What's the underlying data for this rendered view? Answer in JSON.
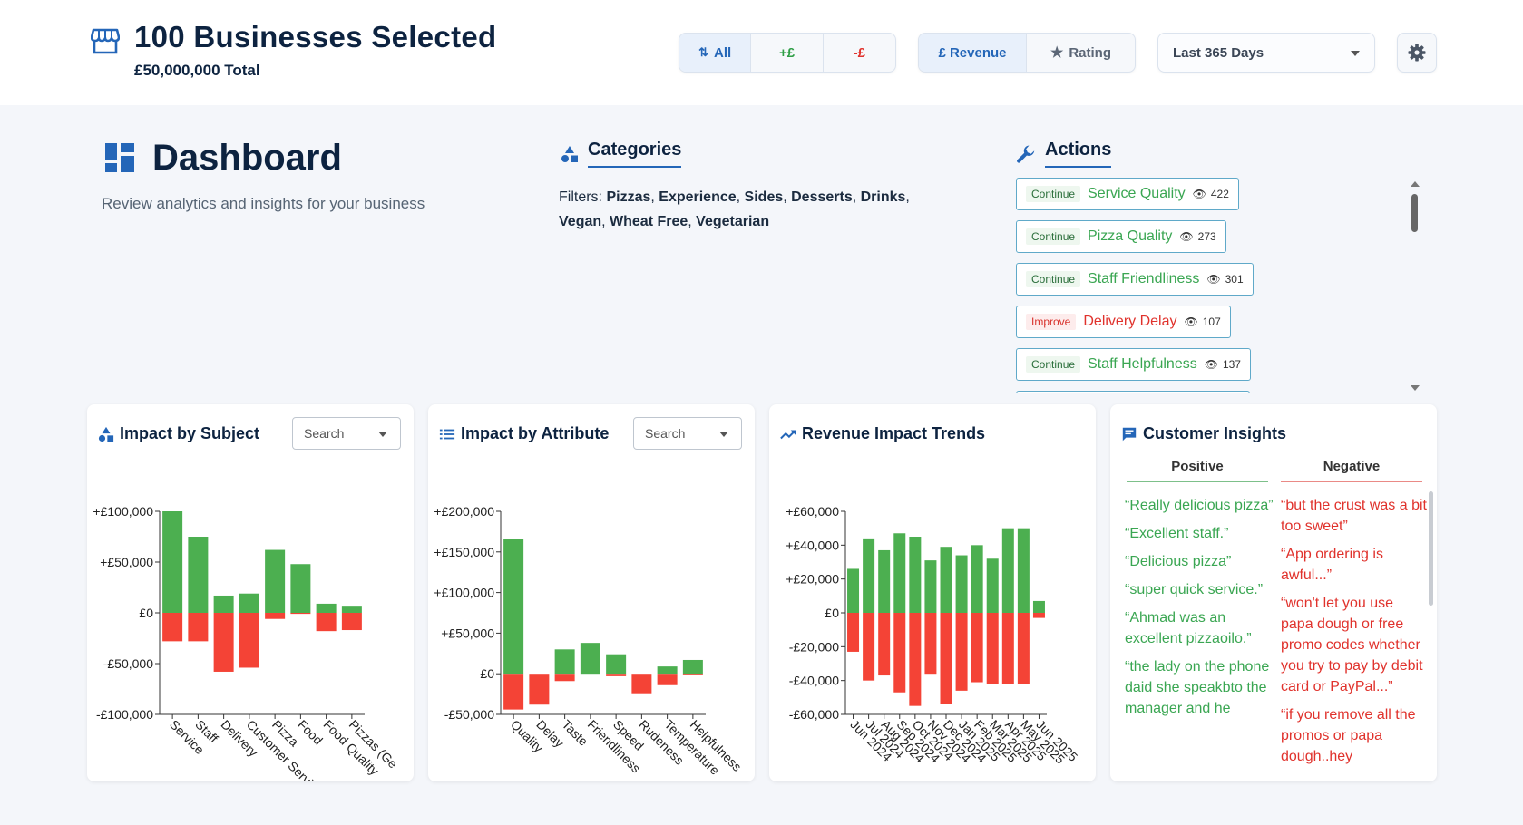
{
  "header": {
    "title": "100 Businesses Selected",
    "total": "£50,000,000 Total",
    "filter_tabs": [
      {
        "label": "All",
        "icon": "sort-arrows-icon",
        "active": true
      },
      {
        "label": "+£",
        "active": false
      },
      {
        "label": "-£",
        "active": false
      }
    ],
    "metric_tabs": [
      {
        "label": "£ Revenue",
        "active": true
      },
      {
        "label": "Rating",
        "icon": "star-icon",
        "active": false
      }
    ],
    "period": "Last 365 Days"
  },
  "dashboard": {
    "title": "Dashboard",
    "subtitle": "Review analytics and insights for your business"
  },
  "categories": {
    "title": "Categories",
    "filters_label": "Filters:",
    "filters": [
      "Pizzas",
      "Experience",
      "Sides",
      "Desserts",
      "Drinks",
      "Vegan",
      "Wheat Free",
      "Vegetarian"
    ]
  },
  "actions": {
    "title": "Actions",
    "items": [
      {
        "tag": "Continue",
        "name": "Service Quality",
        "views": "422",
        "type": "positive"
      },
      {
        "tag": "Continue",
        "name": "Pizza Quality",
        "views": "273",
        "type": "positive"
      },
      {
        "tag": "Continue",
        "name": "Staff Friendliness",
        "views": "301",
        "type": "positive"
      },
      {
        "tag": "Improve",
        "name": "Delivery Delay",
        "views": "107",
        "type": "negative"
      },
      {
        "tag": "Continue",
        "name": "Staff Helpfulness",
        "views": "137",
        "type": "positive"
      }
    ]
  },
  "cards": {
    "subject": {
      "title": "Impact by Subject",
      "search": "Search"
    },
    "attribute": {
      "title": "Impact by Attribute",
      "search": "Search"
    },
    "trends": {
      "title": "Revenue Impact Trends"
    },
    "insights": {
      "title": "Customer Insights",
      "positive_label": "Positive",
      "negative_label": "Negative",
      "positive": [
        "“Really delicious pizza”",
        "“Excellent staff.”",
        "“Delicious pizza”",
        "“super quick service.”",
        "“Ahmad was an excellent pizzaoilo.”",
        "“the lady on the phone daid she speakbto the manager and he"
      ],
      "negative": [
        "“but the crust was a bit too sweet”",
        "“App ordering is awful...”",
        "“won't let you use papa dough or free promo codes whether you try to pay by debit card or PayPal...”",
        "“if you remove all the promos or papa dough..hey"
      ]
    }
  },
  "colors": {
    "positive": "#4caf50",
    "negative": "#f44336",
    "accent": "#2466b8"
  },
  "chart_data": [
    {
      "type": "bar",
      "title": "Impact by Subject",
      "categories": [
        "Service",
        "Staff",
        "Delivery",
        "Customer Service",
        "Pizza",
        "Food",
        "Food Quality",
        "Pizzas (Ge"
      ],
      "series": [
        {
          "name": "positive",
          "values": [
            100000,
            75000,
            17000,
            19000,
            62000,
            48000,
            9000,
            7000
          ]
        },
        {
          "name": "negative",
          "values": [
            -28000,
            -28000,
            -58000,
            -54000,
            -6000,
            -1000,
            -18000,
            -17000
          ]
        }
      ],
      "ylim": [
        -100000,
        100000
      ],
      "ticks": [
        "+£100,000",
        "+£50,000",
        "£0",
        "-£50,000",
        "-£100,000"
      ],
      "tick_values": [
        100000,
        50000,
        0,
        -50000,
        -100000
      ]
    },
    {
      "type": "bar",
      "title": "Impact by Attribute",
      "categories": [
        "Quality",
        "Delay",
        "Taste",
        "Friendliness",
        "Speed",
        "Rudeness",
        "Temperature",
        "Helpfulness"
      ],
      "series": [
        {
          "name": "positive",
          "values": [
            166000,
            0,
            30000,
            38000,
            24000,
            0,
            9000,
            17000
          ]
        },
        {
          "name": "negative",
          "values": [
            -44000,
            -38000,
            -9000,
            0,
            -3000,
            -24000,
            -14000,
            -2000
          ]
        }
      ],
      "ylim": [
        -50000,
        200000
      ],
      "ticks": [
        "+£200,000",
        "+£150,000",
        "+£100,000",
        "+£50,000",
        "£0",
        "-£50,000"
      ],
      "tick_values": [
        200000,
        150000,
        100000,
        50000,
        0,
        -50000
      ]
    },
    {
      "type": "bar",
      "title": "Revenue Impact Trends",
      "categories": [
        "Jun 2024",
        "Jul 2024",
        "Aug 2024",
        "Sep 2024",
        "Oct 2024",
        "Nov 2024",
        "Dec 2024",
        "Jan 2025",
        "Feb 2025",
        "Mar 2025",
        "Apr 2025",
        "May 2025",
        "Jun 2025"
      ],
      "series": [
        {
          "name": "positive",
          "values": [
            26000,
            44000,
            37000,
            47000,
            45000,
            31000,
            39000,
            34000,
            40000,
            32000,
            50000,
            50000,
            7000
          ]
        },
        {
          "name": "negative",
          "values": [
            -23000,
            -40000,
            -37000,
            -47000,
            -55000,
            -36000,
            -54000,
            -46000,
            -41000,
            -42000,
            -42000,
            -42000,
            -3000
          ]
        }
      ],
      "ylim": [
        -60000,
        60000
      ],
      "ticks": [
        "+£60,000",
        "+£40,000",
        "+£20,000",
        "£0",
        "-£20,000",
        "-£40,000",
        "-£60,000"
      ],
      "tick_values": [
        60000,
        40000,
        20000,
        0,
        -20000,
        -40000,
        -60000
      ]
    }
  ]
}
